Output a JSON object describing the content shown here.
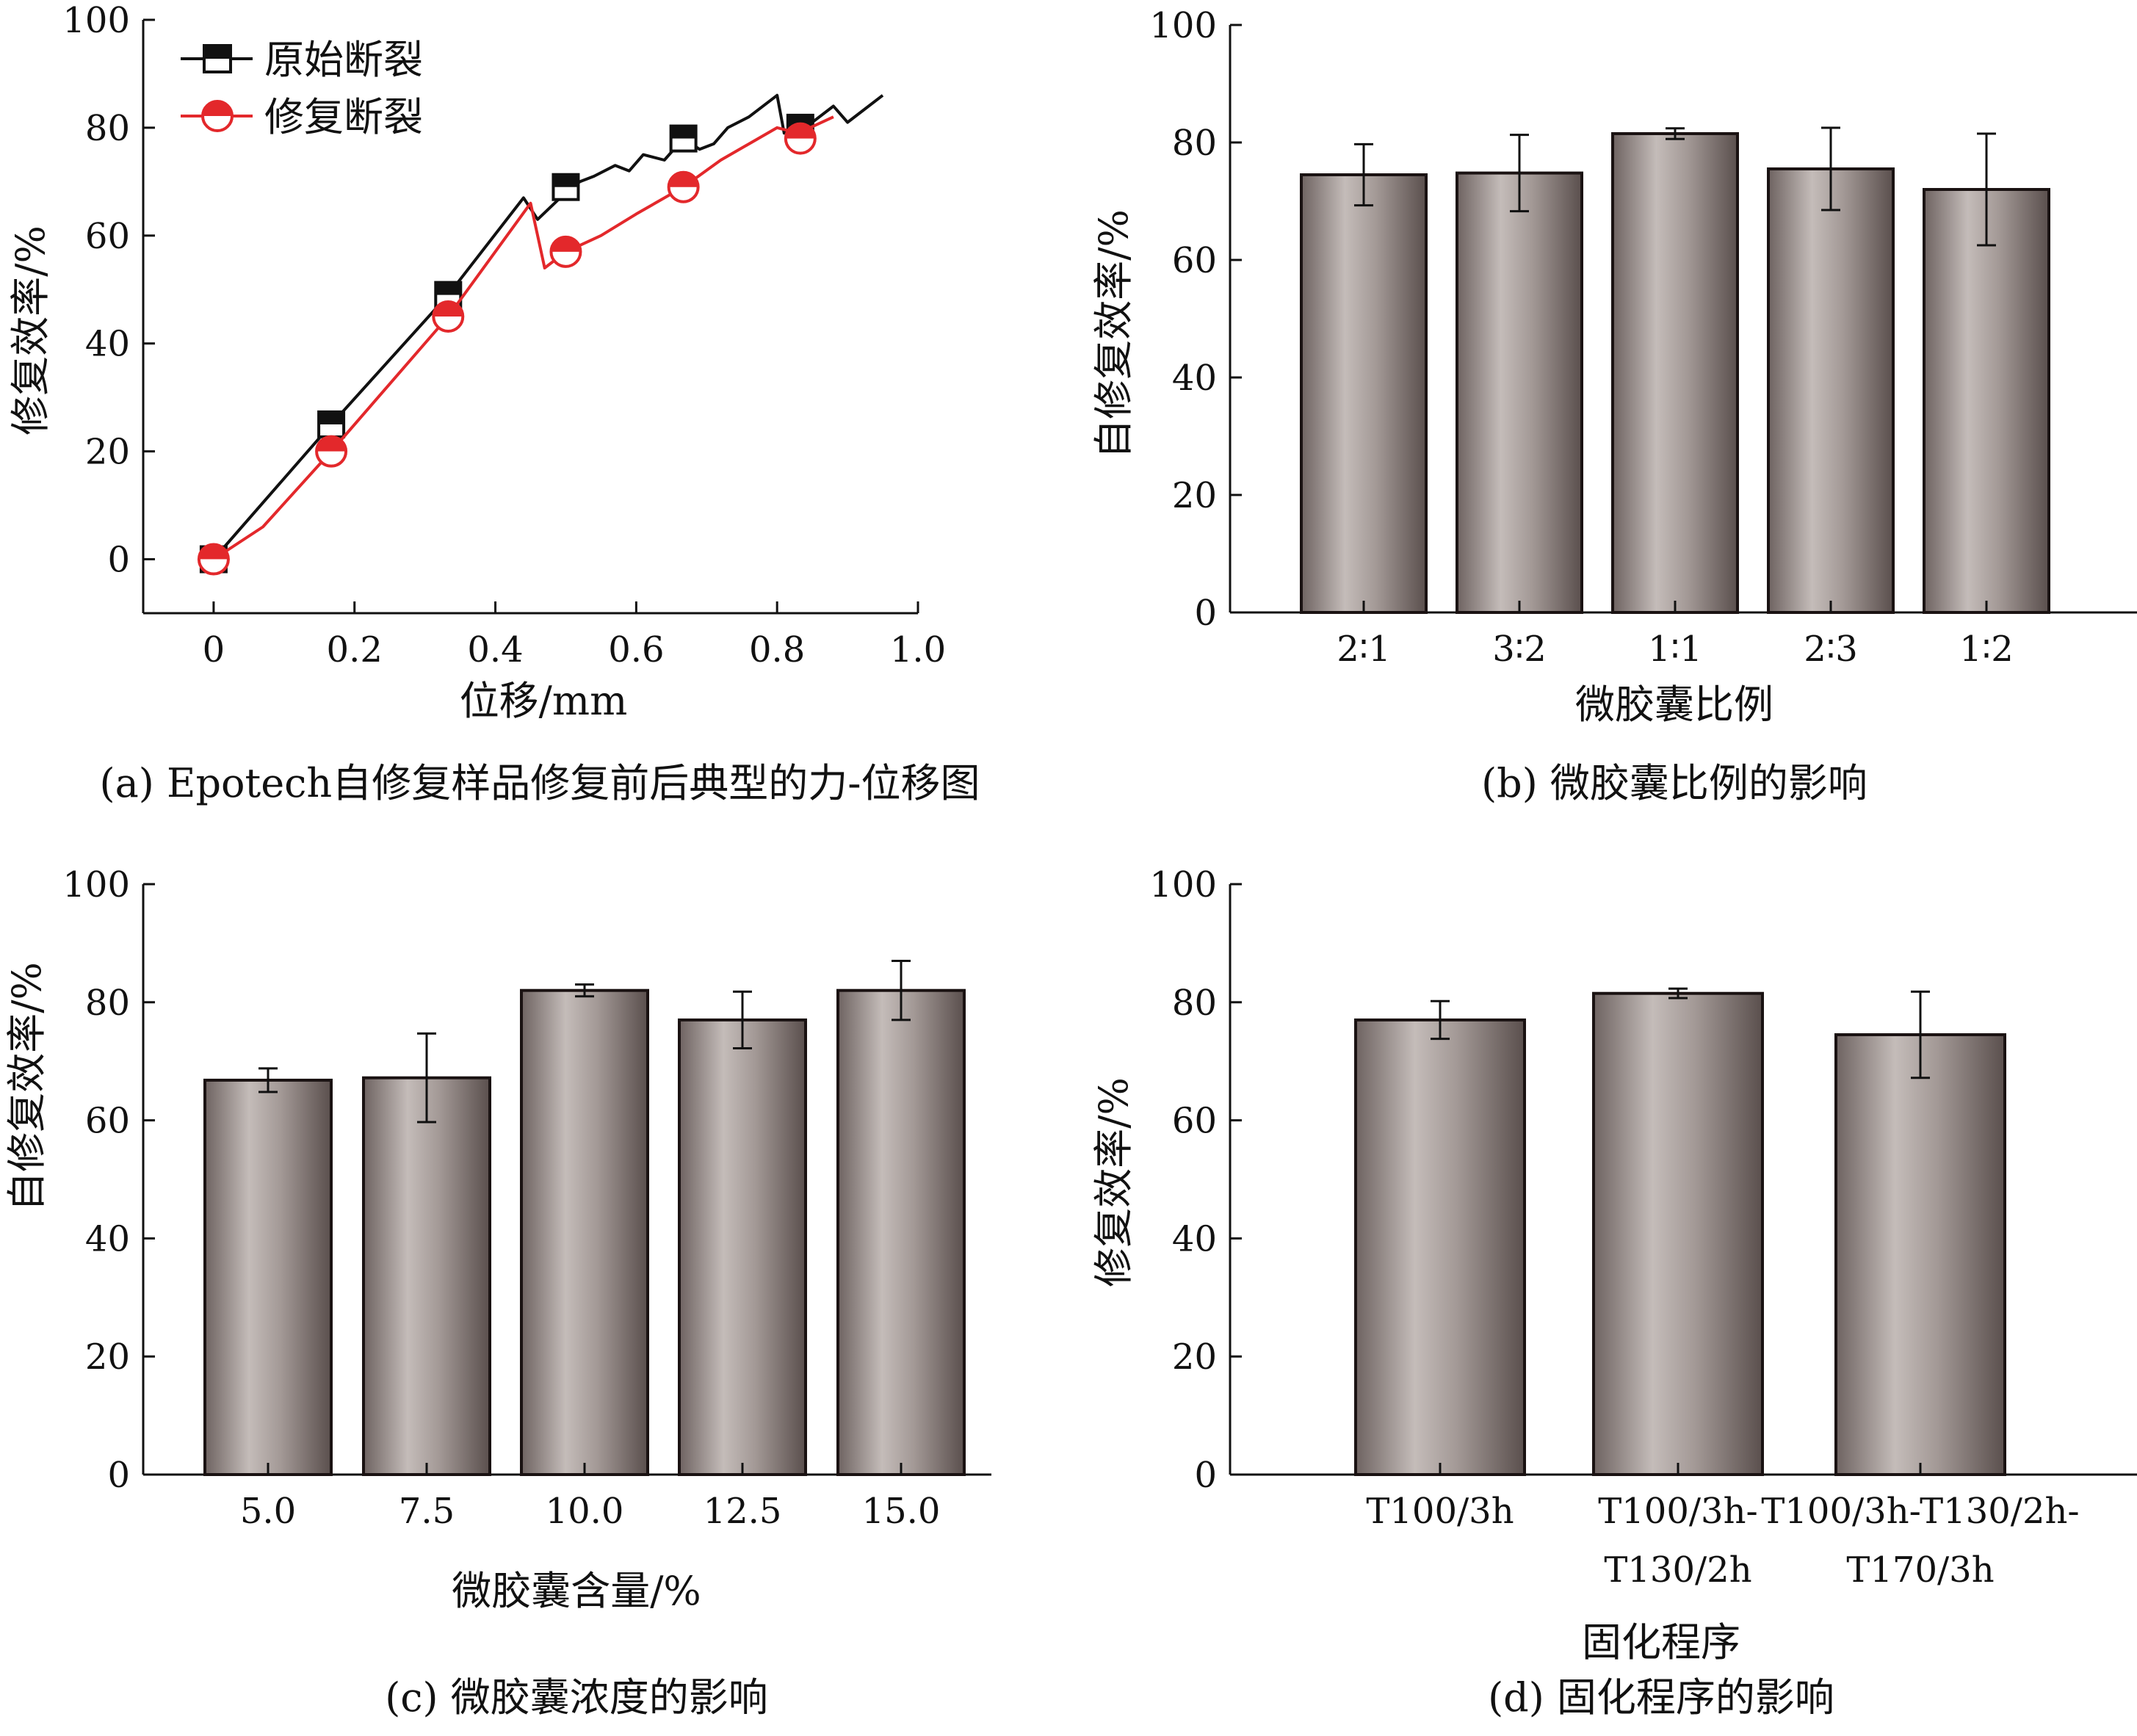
{
  "chart_data": [
    {
      "type": "line",
      "caption": "(a) Epotech自修复样品修复前后典型的力-位移图",
      "xlabel": "位移/mm",
      "ylabel": "修复效率/%",
      "xlim": [
        -0.1,
        1.0
      ],
      "ylim": [
        -10,
        100
      ],
      "xticks": [
        "0",
        "0.2",
        "0.4",
        "0.6",
        "0.8",
        "1.0"
      ],
      "yticks": [
        "0",
        "20",
        "40",
        "60",
        "80",
        "100"
      ],
      "legend_position": "top-left",
      "series": [
        {
          "name": "原始断裂",
          "color": "#111111",
          "marker": "half-filled-square",
          "x": [
            0,
            0.167,
            0.333,
            0.44,
            0.46,
            0.5,
            0.52,
            0.54,
            0.57,
            0.59,
            0.61,
            0.64,
            0.667,
            0.69,
            0.71,
            0.73,
            0.76,
            0.8,
            0.81,
            0.85,
            0.88,
            0.9,
            0.92,
            0.95
          ],
          "y": [
            0,
            25,
            49,
            67,
            63,
            68,
            70,
            71,
            73,
            72,
            75,
            74,
            78,
            76,
            77,
            80,
            82,
            86,
            79,
            81,
            84,
            81,
            83,
            86
          ],
          "marker_x": [
            0,
            0.167,
            0.333,
            0.5,
            0.667,
            0.833
          ],
          "marker_y": [
            0,
            25,
            49,
            69,
            78,
            80
          ]
        },
        {
          "name": "修复断裂",
          "color": "#e3282b",
          "marker": "half-filled-circle",
          "x": [
            0,
            0.07,
            0.167,
            0.333,
            0.45,
            0.47,
            0.5,
            0.55,
            0.6,
            0.667,
            0.72,
            0.8,
            0.83,
            0.88
          ],
          "y": [
            0,
            6,
            20,
            45,
            66,
            54,
            57,
            60,
            64,
            69,
            74,
            80,
            79,
            82
          ],
          "marker_x": [
            0,
            0.167,
            0.333,
            0.5,
            0.667,
            0.833
          ],
          "marker_y": [
            0,
            20,
            45,
            57,
            69,
            78
          ]
        }
      ]
    },
    {
      "type": "bar",
      "caption": "(b) 微胶囊比例的影响",
      "xlabel": "微胶囊比例",
      "ylabel": "自修复效率/%",
      "ylim": [
        0,
        100
      ],
      "yticks": [
        "0",
        "20",
        "40",
        "60",
        "80",
        "100"
      ],
      "categories": [
        "2∶1",
        "3∶2",
        "1∶1",
        "2∶3",
        "1∶2"
      ],
      "values": [
        74.5,
        74.8,
        81.5,
        75.5,
        72
      ],
      "errors": [
        5.2,
        6.5,
        0.9,
        7,
        9.5
      ]
    },
    {
      "type": "bar",
      "caption": "(c) 微胶囊浓度的影响",
      "xlabel": "微胶囊含量/%",
      "ylabel": "自修复效率/%",
      "ylim": [
        0,
        100
      ],
      "yticks": [
        "0",
        "20",
        "40",
        "60",
        "80",
        "100"
      ],
      "categories": [
        "5.0",
        "7.5",
        "10.0",
        "12.5",
        "15.0"
      ],
      "values": [
        66.8,
        67.2,
        82,
        77,
        82
      ],
      "errors": [
        2,
        7.5,
        1,
        4.8,
        5
      ]
    },
    {
      "type": "bar",
      "caption": "(d) 固化程序的影响",
      "xlabel": "固化程序",
      "ylabel": "修复效率/%",
      "ylim": [
        0,
        100
      ],
      "yticks": [
        "0",
        "20",
        "40",
        "60",
        "80",
        "100"
      ],
      "categories": [
        [
          "T100/3h"
        ],
        [
          "T100/3h-",
          "T130/2h"
        ],
        [
          "T100/3h-T130/2h-",
          "T170/3h"
        ]
      ],
      "values": [
        77,
        81.5,
        74.5
      ],
      "errors": [
        3.2,
        0.8,
        7.3
      ]
    }
  ],
  "colors": {
    "axis": "#111111",
    "bar_edge": "#1a1212",
    "bar_dark": "#6e6361",
    "bar_light": "#c4bcb9",
    "series_black": "#111111",
    "series_red": "#e3282b"
  }
}
